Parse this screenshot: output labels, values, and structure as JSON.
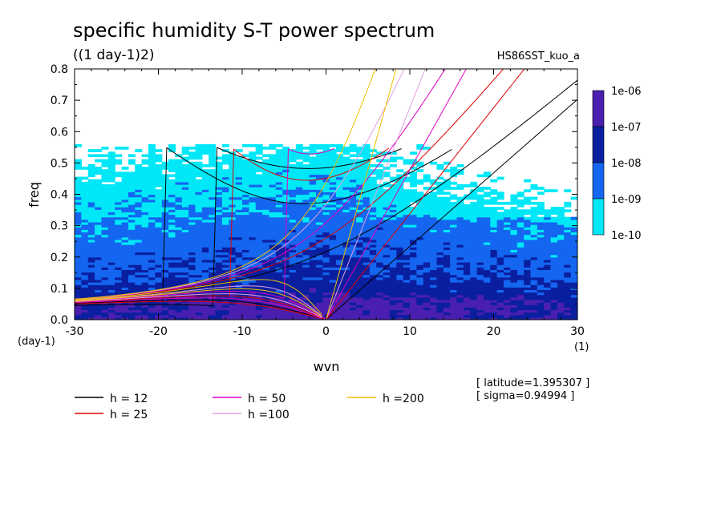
{
  "chart_data": {
    "type": "heatmap",
    "title": "specific humidity S-T power spectrum",
    "subtitle": "((1 day-1)2)",
    "run_label": "HS86SST_kuo_a",
    "xlabel": "wvn",
    "ylabel": "freq",
    "x_unit": "(1)",
    "y_unit": "(day-1)",
    "xlim": [
      -30,
      30
    ],
    "ylim": [
      0,
      0.8
    ],
    "x_ticks": [
      -30,
      -20,
      -10,
      0,
      10,
      20,
      30
    ],
    "x_tick_labels": [
      "-30",
      "-20",
      "-10",
      "0",
      "10",
      "20",
      "30"
    ],
    "y_ticks": [
      0.0,
      0.1,
      0.2,
      0.3,
      0.4,
      0.5,
      0.6,
      0.7,
      0.8
    ],
    "y_tick_labels": [
      "0.0",
      "0.1",
      "0.2",
      "0.3",
      "0.4",
      "0.5",
      "0.6",
      "0.7",
      "0.8"
    ],
    "grid": false,
    "colorbar": {
      "levels": [
        "1e-06",
        "1e-07",
        "1e-08",
        "1e-09",
        "1e-10"
      ],
      "colors": [
        "#4a1fb0",
        "#0a1fa0",
        "#1466f0",
        "#00e8f8"
      ],
      "band_names": [
        "1e-07 to 1e-06",
        "1e-08 to 1e-07",
        "1e-09 to 1e-08",
        "1e-10 to 1e-09"
      ]
    },
    "power_description": "Highest power near freq 0.03-0.08 across wavenumbers; power decreases upward, mostly below 1e-10 above freq 0.5",
    "dispersion_curves": [
      {
        "name": "h = 12",
        "h": 12,
        "color": "#000000"
      },
      {
        "name": "h = 25",
        "h": 25,
        "color": "#e00000"
      },
      {
        "name": "h = 50",
        "h": 50,
        "color": "#e000c0"
      },
      {
        "name": "h =100",
        "h": 100,
        "color": "#e0a0e0"
      },
      {
        "name": "h =200",
        "h": 200,
        "color": "#f0c000"
      }
    ],
    "annotations": [
      "[ latitude=1.395307 ]",
      "[ sigma=0.94994 ]"
    ]
  }
}
